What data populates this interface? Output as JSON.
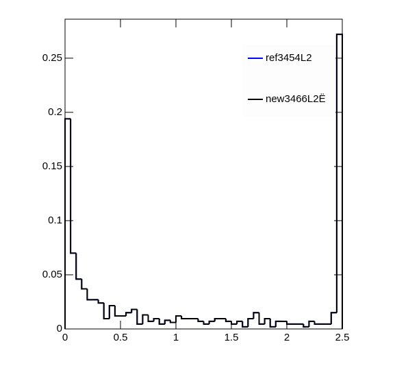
{
  "chart_data": {
    "type": "histogram",
    "bins": [
      0,
      0.05,
      0.1,
      0.15,
      0.2,
      0.25,
      0.3,
      0.35,
      0.4,
      0.45,
      0.5,
      0.55,
      0.6,
      0.65,
      0.7,
      0.75,
      0.8,
      0.85,
      0.9,
      0.95,
      1,
      1.05,
      1.1,
      1.15,
      1.2,
      1.25,
      1.3,
      1.35,
      1.4,
      1.45,
      1.5,
      1.55,
      1.6,
      1.65,
      1.7,
      1.75,
      1.8,
      1.85,
      1.9,
      1.95,
      2,
      2.05,
      2.1,
      2.15,
      2.2,
      2.25,
      2.3,
      2.35,
      2.4,
      2.45,
      2.5
    ],
    "series": [
      {
        "name": "ref3454L2",
        "color": "#0000ff",
        "values": [
          0.194,
          0.07,
          0.046,
          0.037,
          0.027,
          0.027,
          0.024,
          0.0095,
          0.0215,
          0.012,
          0.012,
          0.015,
          0.018,
          0.0045,
          0.013,
          0.007,
          0.0095,
          0.0045,
          0.008,
          0.006,
          0.012,
          0.0095,
          0.0095,
          0.0095,
          0.007,
          0.0045,
          0.007,
          0.0095,
          0.0095,
          0.007,
          0.0045,
          0.007,
          0.002,
          0.0095,
          0.015,
          0.0045,
          0.0095,
          0.002,
          0.007,
          0.007,
          0.0045,
          0.0045,
          0.0045,
          0.002,
          0.007,
          0.0045,
          0.0045,
          0.0045,
          0.015,
          0.272
        ]
      },
      {
        "name": "new3466L2Ë",
        "color": "#000000",
        "values": [
          0.194,
          0.07,
          0.046,
          0.037,
          0.027,
          0.027,
          0.024,
          0.0095,
          0.0215,
          0.012,
          0.012,
          0.015,
          0.018,
          0.0045,
          0.013,
          0.007,
          0.0095,
          0.0045,
          0.008,
          0.006,
          0.012,
          0.0095,
          0.0095,
          0.0095,
          0.007,
          0.0045,
          0.007,
          0.0095,
          0.0095,
          0.007,
          0.0045,
          0.007,
          0.002,
          0.0095,
          0.015,
          0.0045,
          0.0095,
          0.002,
          0.007,
          0.007,
          0.0045,
          0.0045,
          0.0045,
          0.002,
          0.007,
          0.0045,
          0.0045,
          0.0045,
          0.015,
          0.272
        ]
      }
    ],
    "xlim": [
      0,
      2.5
    ],
    "xticks": [
      0,
      0.5,
      1,
      1.5,
      2,
      2.5
    ],
    "ylim": [
      0,
      0.286
    ],
    "yticks": [
      0,
      0.05,
      0.1,
      0.15,
      0.2,
      0.25
    ],
    "legend": "top-right"
  }
}
